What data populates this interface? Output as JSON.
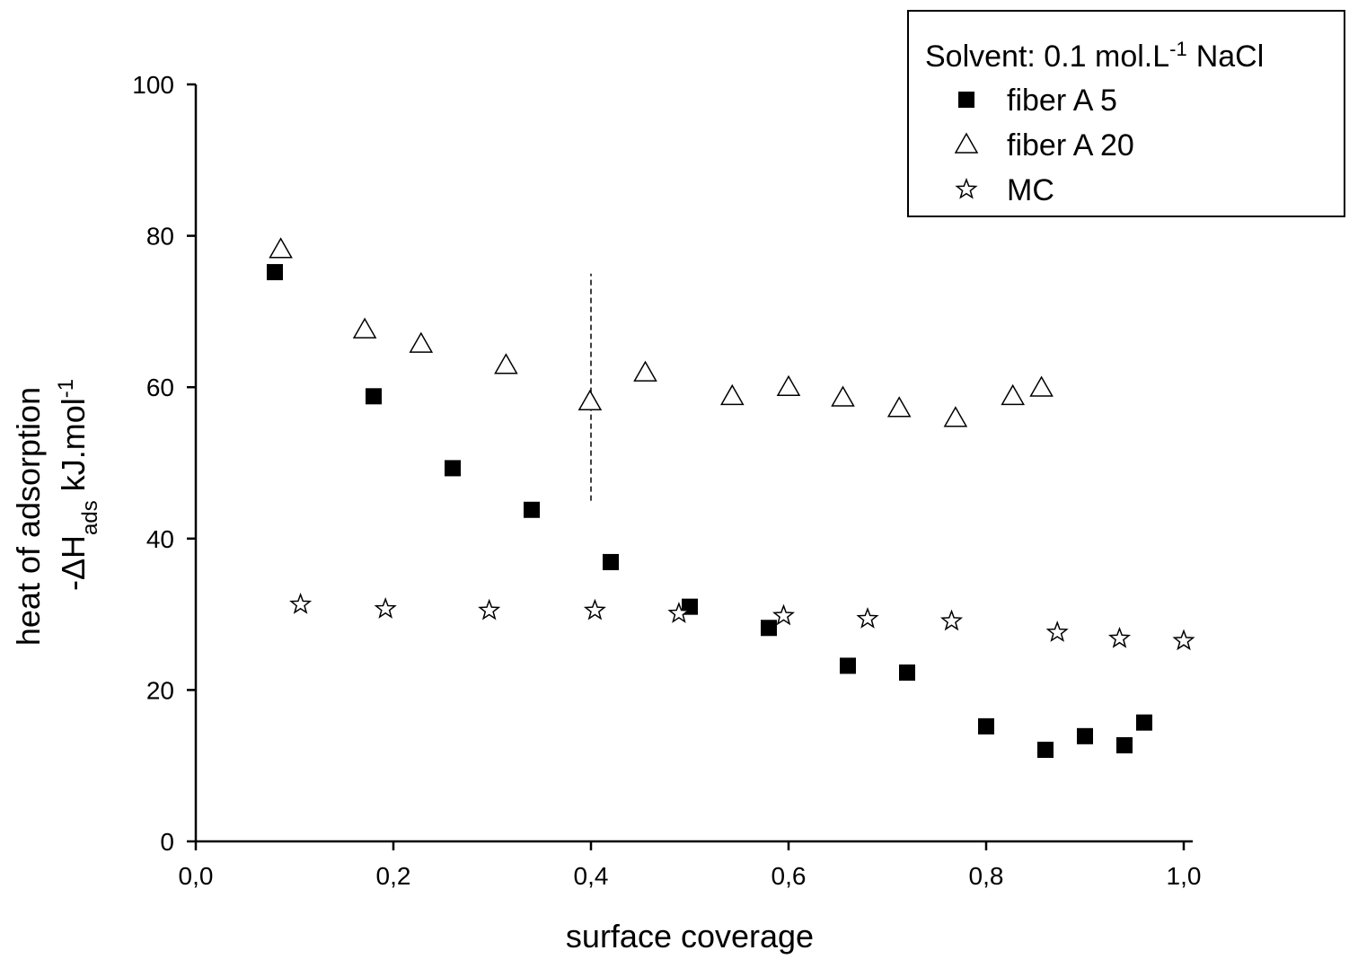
{
  "chart_data": {
    "type": "scatter",
    "xlabel": "surface coverage",
    "ylabel": "heat of adsorption",
    "ylabel2": {
      "main": "-ΔH",
      "sub": "ads",
      "unit": "kJ.mol",
      "sup": "-1"
    },
    "legend_title": {
      "pre": "Solvent: 0.1 mol.L",
      "sup": "-1",
      "post": "NaCl"
    },
    "legend": "upper right",
    "xlim": [
      0,
      1
    ],
    "ylim": [
      0,
      100
    ],
    "xticks": [
      {
        "value": 0,
        "label": "0,0"
      },
      {
        "value": 0.2,
        "label": "0,2"
      },
      {
        "value": 0.4,
        "label": "0,4"
      },
      {
        "value": 0.6,
        "label": "0,6"
      },
      {
        "value": 0.8,
        "label": "0,8"
      },
      {
        "value": 1,
        "label": "1,0"
      }
    ],
    "yticks": [
      0,
      20,
      40,
      60,
      80,
      100
    ],
    "vline": {
      "x": 0.4,
      "ymin": 45,
      "ymax": 75
    },
    "series": [
      {
        "name": "fiber A 5",
        "marker": "square",
        "color": "#000000",
        "x": [
          0.08,
          0.18,
          0.26,
          0.34,
          0.42,
          0.5,
          0.58,
          0.66,
          0.72,
          0.8,
          0.86,
          0.9,
          0.94,
          0.96
        ],
        "values": [
          75.2,
          58.8,
          49.3,
          43.8,
          36.9,
          31.0,
          28.2,
          23.2,
          22.3,
          15.2,
          12.1,
          13.9,
          12.7,
          15.7
        ]
      },
      {
        "name": "fiber A 20",
        "marker": "triangle",
        "color": "#000000",
        "x": [
          0.086,
          0.171,
          0.228,
          0.314,
          0.399,
          0.455,
          0.543,
          0.6,
          0.655,
          0.712,
          0.769,
          0.827,
          0.856
        ],
        "values": [
          78.2,
          67.6,
          65.7,
          62.9,
          58.1,
          61.9,
          58.8,
          60.0,
          58.6,
          57.2,
          55.9,
          58.8,
          59.9
        ]
      },
      {
        "name": "MC",
        "marker": "star",
        "color": "#000000",
        "x": [
          0.106,
          0.192,
          0.297,
          0.404,
          0.489,
          0.595,
          0.68,
          0.765,
          0.872,
          0.935,
          1.0
        ],
        "values": [
          31.3,
          30.7,
          30.5,
          30.5,
          30.1,
          29.8,
          29.4,
          29.1,
          27.6,
          26.8,
          26.5
        ]
      }
    ]
  }
}
